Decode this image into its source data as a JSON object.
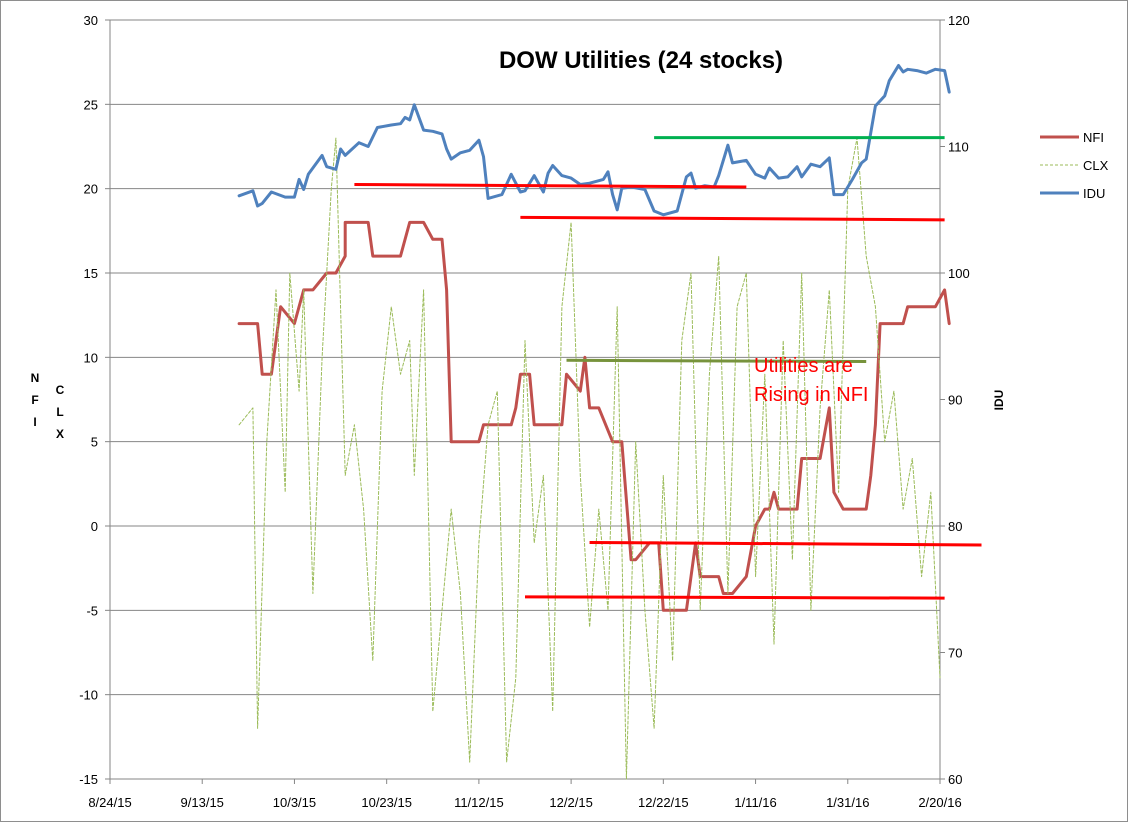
{
  "chart_data": {
    "type": "line",
    "title": "DOW Utilities (24 stocks)",
    "x_ticks": [
      "8/24/15",
      "9/13/15",
      "10/3/15",
      "10/23/15",
      "11/12/15",
      "12/2/15",
      "12/22/15",
      "1/11/16",
      "1/31/16",
      "2/20/16"
    ],
    "y_left": {
      "ticks": [
        "30",
        "25",
        "20",
        "15",
        "10",
        "5",
        "0",
        "-5",
        "-10",
        "-15"
      ],
      "range": [
        -15,
        30
      ],
      "label_letters_a": [
        "N",
        "F",
        "I"
      ],
      "label_letters_b": [
        "C",
        "L",
        "X"
      ]
    },
    "y_right": {
      "ticks": [
        "120",
        "110",
        "100",
        "90",
        "80",
        "70",
        "60"
      ],
      "range": [
        60,
        120
      ],
      "label": "IDU"
    },
    "grid": "horizontal",
    "legend_position": "right",
    "series": [
      {
        "name": "NFI",
        "axis": "left",
        "color": "#c0504d",
        "style": "solid",
        "points": [
          [
            "9/21/15",
            12
          ],
          [
            "9/23/15",
            12
          ],
          [
            "9/25/15",
            12
          ],
          [
            "9/26/15",
            9
          ],
          [
            "9/28/15",
            9
          ],
          [
            "9/30/15",
            13
          ],
          [
            "10/3/15",
            12
          ],
          [
            "10/5/15",
            14
          ],
          [
            "10/7/15",
            14
          ],
          [
            "10/10/15",
            15
          ],
          [
            "10/12/15",
            15
          ],
          [
            "10/14/15",
            16
          ],
          [
            "10/14/15",
            18
          ],
          [
            "10/17/15",
            18
          ],
          [
            "10/19/15",
            18
          ],
          [
            "10/20/15",
            16
          ],
          [
            "10/22/15",
            16
          ],
          [
            "10/26/15",
            16
          ],
          [
            "10/28/15",
            18
          ],
          [
            "10/31/15",
            18
          ],
          [
            "11/2/15",
            17
          ],
          [
            "11/4/15",
            17
          ],
          [
            "11/5/15",
            14
          ],
          [
            "11/6/15",
            5
          ],
          [
            "11/10/15",
            5
          ],
          [
            "11/12/15",
            5
          ],
          [
            "11/13/15",
            6
          ],
          [
            "11/17/15",
            6
          ],
          [
            "11/19/15",
            6
          ],
          [
            "11/20/15",
            7
          ],
          [
            "11/21/15",
            9
          ],
          [
            "11/23/15",
            9
          ],
          [
            "11/24/15",
            6
          ],
          [
            "11/28/15",
            6
          ],
          [
            "11/30/15",
            6
          ],
          [
            "12/1/15",
            9
          ],
          [
            "12/4/15",
            8
          ],
          [
            "12/5/15",
            10
          ],
          [
            "12/6/15",
            7
          ],
          [
            "12/8/15",
            7
          ],
          [
            "12/11/15",
            5
          ],
          [
            "12/13/15",
            5
          ],
          [
            "12/15/15",
            -2
          ],
          [
            "12/16/15",
            -2
          ],
          [
            "12/19/15",
            -1
          ],
          [
            "12/21/15",
            -1
          ],
          [
            "12/22/15",
            -5
          ],
          [
            "12/25/15",
            -5
          ],
          [
            "12/27/15",
            -5
          ],
          [
            "12/29/15",
            -1
          ],
          [
            "12/30/15",
            -3
          ],
          [
            "1/1/16",
            -3
          ],
          [
            "1/3/16",
            -3
          ],
          [
            "1/4/16",
            -4
          ],
          [
            "1/6/16",
            -4
          ],
          [
            "1/9/16",
            -3
          ],
          [
            "1/11/16",
            0
          ],
          [
            "1/13/16",
            1
          ],
          [
            "1/14/16",
            1
          ],
          [
            "1/15/16",
            2
          ],
          [
            "1/16/16",
            1
          ],
          [
            "1/18/16",
            1
          ],
          [
            "1/20/16",
            1
          ],
          [
            "1/21/16",
            4
          ],
          [
            "1/23/16",
            4
          ],
          [
            "1/25/16",
            4
          ],
          [
            "1/27/16",
            7
          ],
          [
            "1/28/16",
            2
          ],
          [
            "1/30/16",
            1
          ],
          [
            "2/1/16",
            1
          ],
          [
            "2/4/16",
            1
          ],
          [
            "2/5/16",
            3
          ],
          [
            "2/6/16",
            6
          ],
          [
            "2/7/16",
            12
          ],
          [
            "2/9/16",
            12
          ],
          [
            "2/12/16",
            12
          ],
          [
            "2/13/16",
            13
          ],
          [
            "2/16/16",
            13
          ],
          [
            "2/19/16",
            13
          ],
          [
            "2/21/16",
            14
          ],
          [
            "2/22/16",
            12
          ]
        ]
      },
      {
        "name": "CLX",
        "axis": "left",
        "color": "#9bbb59",
        "style": "dashed",
        "points": [
          [
            "9/21/15",
            6
          ],
          [
            "9/24/15",
            7
          ],
          [
            "9/25/15",
            -12
          ],
          [
            "9/27/15",
            5
          ],
          [
            "9/29/15",
            14
          ],
          [
            "10/1/15",
            2
          ],
          [
            "10/2/15",
            15
          ],
          [
            "10/4/15",
            8
          ],
          [
            "10/5/15",
            14
          ],
          [
            "10/7/15",
            -4
          ],
          [
            "10/9/15",
            10
          ],
          [
            "10/11/15",
            20
          ],
          [
            "10/12/15",
            23
          ],
          [
            "10/14/15",
            3
          ],
          [
            "10/16/15",
            6
          ],
          [
            "10/18/15",
            1
          ],
          [
            "10/20/15",
            -8
          ],
          [
            "10/22/15",
            8
          ],
          [
            "10/24/15",
            13
          ],
          [
            "10/26/15",
            9
          ],
          [
            "10/28/15",
            11
          ],
          [
            "10/29/15",
            3
          ],
          [
            "10/31/15",
            14
          ],
          [
            "11/2/15",
            -11
          ],
          [
            "11/4/15",
            -5
          ],
          [
            "11/6/15",
            1
          ],
          [
            "11/8/15",
            -4
          ],
          [
            "11/10/15",
            -14
          ],
          [
            "11/12/15",
            -1
          ],
          [
            "11/14/15",
            6
          ],
          [
            "11/16/15",
            8
          ],
          [
            "11/18/15",
            -14
          ],
          [
            "11/20/15",
            -9
          ],
          [
            "11/22/15",
            11
          ],
          [
            "11/24/15",
            -1
          ],
          [
            "11/26/15",
            3
          ],
          [
            "11/28/15",
            -11
          ],
          [
            "11/30/15",
            13
          ],
          [
            "12/2/15",
            18
          ],
          [
            "12/4/15",
            3
          ],
          [
            "12/6/15",
            -6
          ],
          [
            "12/8/15",
            1
          ],
          [
            "12/10/15",
            -5
          ],
          [
            "12/12/15",
            13
          ],
          [
            "12/14/15",
            -15
          ],
          [
            "12/16/15",
            5
          ],
          [
            "12/18/15",
            -5
          ],
          [
            "12/20/15",
            -12
          ],
          [
            "12/22/15",
            3
          ],
          [
            "12/24/15",
            -8
          ],
          [
            "12/26/15",
            11
          ],
          [
            "12/28/15",
            15
          ],
          [
            "12/30/15",
            -5
          ],
          [
            "1/1/16",
            9
          ],
          [
            "1/3/16",
            16
          ],
          [
            "1/5/16",
            -4
          ],
          [
            "1/7/16",
            13
          ],
          [
            "1/9/16",
            15
          ],
          [
            "1/11/16",
            -3
          ],
          [
            "1/13/16",
            9
          ],
          [
            "1/15/16",
            -7
          ],
          [
            "1/17/16",
            11
          ],
          [
            "1/19/16",
            -2
          ],
          [
            "1/21/16",
            15
          ],
          [
            "1/23/16",
            -5
          ],
          [
            "1/25/16",
            7
          ],
          [
            "1/27/16",
            14
          ],
          [
            "1/29/16",
            2
          ],
          [
            "1/31/16",
            20
          ],
          [
            "2/2/16",
            23
          ],
          [
            "2/4/16",
            16
          ],
          [
            "2/6/16",
            13
          ],
          [
            "2/8/16",
            5
          ],
          [
            "2/10/16",
            8
          ],
          [
            "2/12/16",
            1
          ],
          [
            "2/14/16",
            4
          ],
          [
            "2/16/16",
            -3
          ],
          [
            "2/18/16",
            2
          ],
          [
            "2/20/16",
            -9
          ]
        ]
      },
      {
        "name": "IDU",
        "axis": "right",
        "color": "#4f81bd",
        "style": "solid",
        "points": [
          [
            "9/21/15",
            106.1
          ],
          [
            "9/24/15",
            106.5
          ],
          [
            "9/25/15",
            105.3
          ],
          [
            "9/26/15",
            105.5
          ],
          [
            "9/28/15",
            106.4
          ],
          [
            "10/1/15",
            106.0
          ],
          [
            "10/3/15",
            106.0
          ],
          [
            "10/4/15",
            107.4
          ],
          [
            "10/5/15",
            106.6
          ],
          [
            "10/6/15",
            107.8
          ],
          [
            "10/9/15",
            109.3
          ],
          [
            "10/10/15",
            108.4
          ],
          [
            "10/12/15",
            108.2
          ],
          [
            "10/13/15",
            109.8
          ],
          [
            "10/14/15",
            109.3
          ],
          [
            "10/17/15",
            110.3
          ],
          [
            "10/19/15",
            110.0
          ],
          [
            "10/21/15",
            111.5
          ],
          [
            "10/24/15",
            111.7
          ],
          [
            "10/26/15",
            111.8
          ],
          [
            "10/27/15",
            112.3
          ],
          [
            "10/28/15",
            112.1
          ],
          [
            "10/29/15",
            113.3
          ],
          [
            "10/31/15",
            111.3
          ],
          [
            "11/2/15",
            111.2
          ],
          [
            "11/4/15",
            111.0
          ],
          [
            "11/5/15",
            109.8
          ],
          [
            "11/6/15",
            109.0
          ],
          [
            "11/8/15",
            109.5
          ],
          [
            "11/10/15",
            109.7
          ],
          [
            "11/12/15",
            110.5
          ],
          [
            "11/13/15",
            109.2
          ],
          [
            "11/14/15",
            105.9
          ],
          [
            "11/17/15",
            106.2
          ],
          [
            "11/19/15",
            107.8
          ],
          [
            "11/21/15",
            106.4
          ],
          [
            "11/22/15",
            106.5
          ],
          [
            "11/24/15",
            107.7
          ],
          [
            "11/26/15",
            106.4
          ],
          [
            "11/27/15",
            107.9
          ],
          [
            "11/28/15",
            108.5
          ],
          [
            "11/30/15",
            107.7
          ],
          [
            "12/2/15",
            107.5
          ],
          [
            "12/4/15",
            107.0
          ],
          [
            "12/6/15",
            107.1
          ],
          [
            "12/9/15",
            107.4
          ],
          [
            "12/10/15",
            108.0
          ],
          [
            "12/11/15",
            106.2
          ],
          [
            "12/12/15",
            105.0
          ],
          [
            "12/13/15",
            106.7
          ],
          [
            "12/15/15",
            106.8
          ],
          [
            "12/18/15",
            106.6
          ],
          [
            "12/20/15",
            104.9
          ],
          [
            "12/22/15",
            104.6
          ],
          [
            "12/25/15",
            104.9
          ],
          [
            "12/27/15",
            107.6
          ],
          [
            "12/28/15",
            107.9
          ],
          [
            "12/29/15",
            106.7
          ],
          [
            "12/31/15",
            106.9
          ],
          [
            "1/2/16",
            106.8
          ],
          [
            "1/3/16",
            107.7
          ],
          [
            "1/5/16",
            110.1
          ],
          [
            "1/6/16",
            108.7
          ],
          [
            "1/9/16",
            108.9
          ],
          [
            "1/11/16",
            107.8
          ],
          [
            "1/13/16",
            107.5
          ],
          [
            "1/14/16",
            108.3
          ],
          [
            "1/16/16",
            107.5
          ],
          [
            "1/18/16",
            107.6
          ],
          [
            "1/20/16",
            108.4
          ],
          [
            "1/21/16",
            107.6
          ],
          [
            "1/23/16",
            108.6
          ],
          [
            "1/25/16",
            108.4
          ],
          [
            "1/27/16",
            109.1
          ],
          [
            "1/28/16",
            106.2
          ],
          [
            "1/30/16",
            106.2
          ],
          [
            "2/1/16",
            107.4
          ],
          [
            "2/3/16",
            108.7
          ],
          [
            "2/4/16",
            109.0
          ],
          [
            "2/6/16",
            113.2
          ],
          [
            "2/8/16",
            114.0
          ],
          [
            "2/9/16",
            115.2
          ],
          [
            "2/11/16",
            116.4
          ],
          [
            "2/12/16",
            115.9
          ],
          [
            "2/13/16",
            116.1
          ],
          [
            "2/15/16",
            116.0
          ],
          [
            "2/17/16",
            115.8
          ],
          [
            "2/19/16",
            116.1
          ],
          [
            "2/21/16",
            116.0
          ],
          [
            "2/22/16",
            114.3
          ]
        ]
      }
    ],
    "trend_lines": [
      {
        "axis": "right",
        "color": "#00b050",
        "from": [
          "12/20/15",
          110.7
        ],
        "to": [
          "2/21/16",
          110.7
        ]
      },
      {
        "axis": "right",
        "color": "#ff0000",
        "from": [
          "10/16/15",
          107.0
        ],
        "to": [
          "1/9/16",
          106.8
        ]
      },
      {
        "axis": "right",
        "color": "#ff0000",
        "from": [
          "11/21/15",
          104.4
        ],
        "to": [
          "2/21/16",
          104.2
        ]
      },
      {
        "axis": "right",
        "color": "#77933c",
        "from": [
          "12/1/15",
          93.1
        ],
        "to": [
          "2/4/16",
          93.0
        ]
      },
      {
        "axis": "right",
        "color": "#ff0000",
        "from": [
          "12/6/15",
          78.7
        ],
        "to": [
          "2/29/16",
          78.5
        ]
      },
      {
        "axis": "right",
        "color": "#ff0000",
        "from": [
          "11/22/15",
          74.4
        ],
        "to": [
          "2/21/16",
          74.3
        ]
      }
    ],
    "annotation": {
      "lines": [
        "Utilities are",
        "Rising in NFI"
      ],
      "color": "#ff0000"
    },
    "legend": [
      "NFI",
      "CLX",
      "IDU"
    ]
  }
}
